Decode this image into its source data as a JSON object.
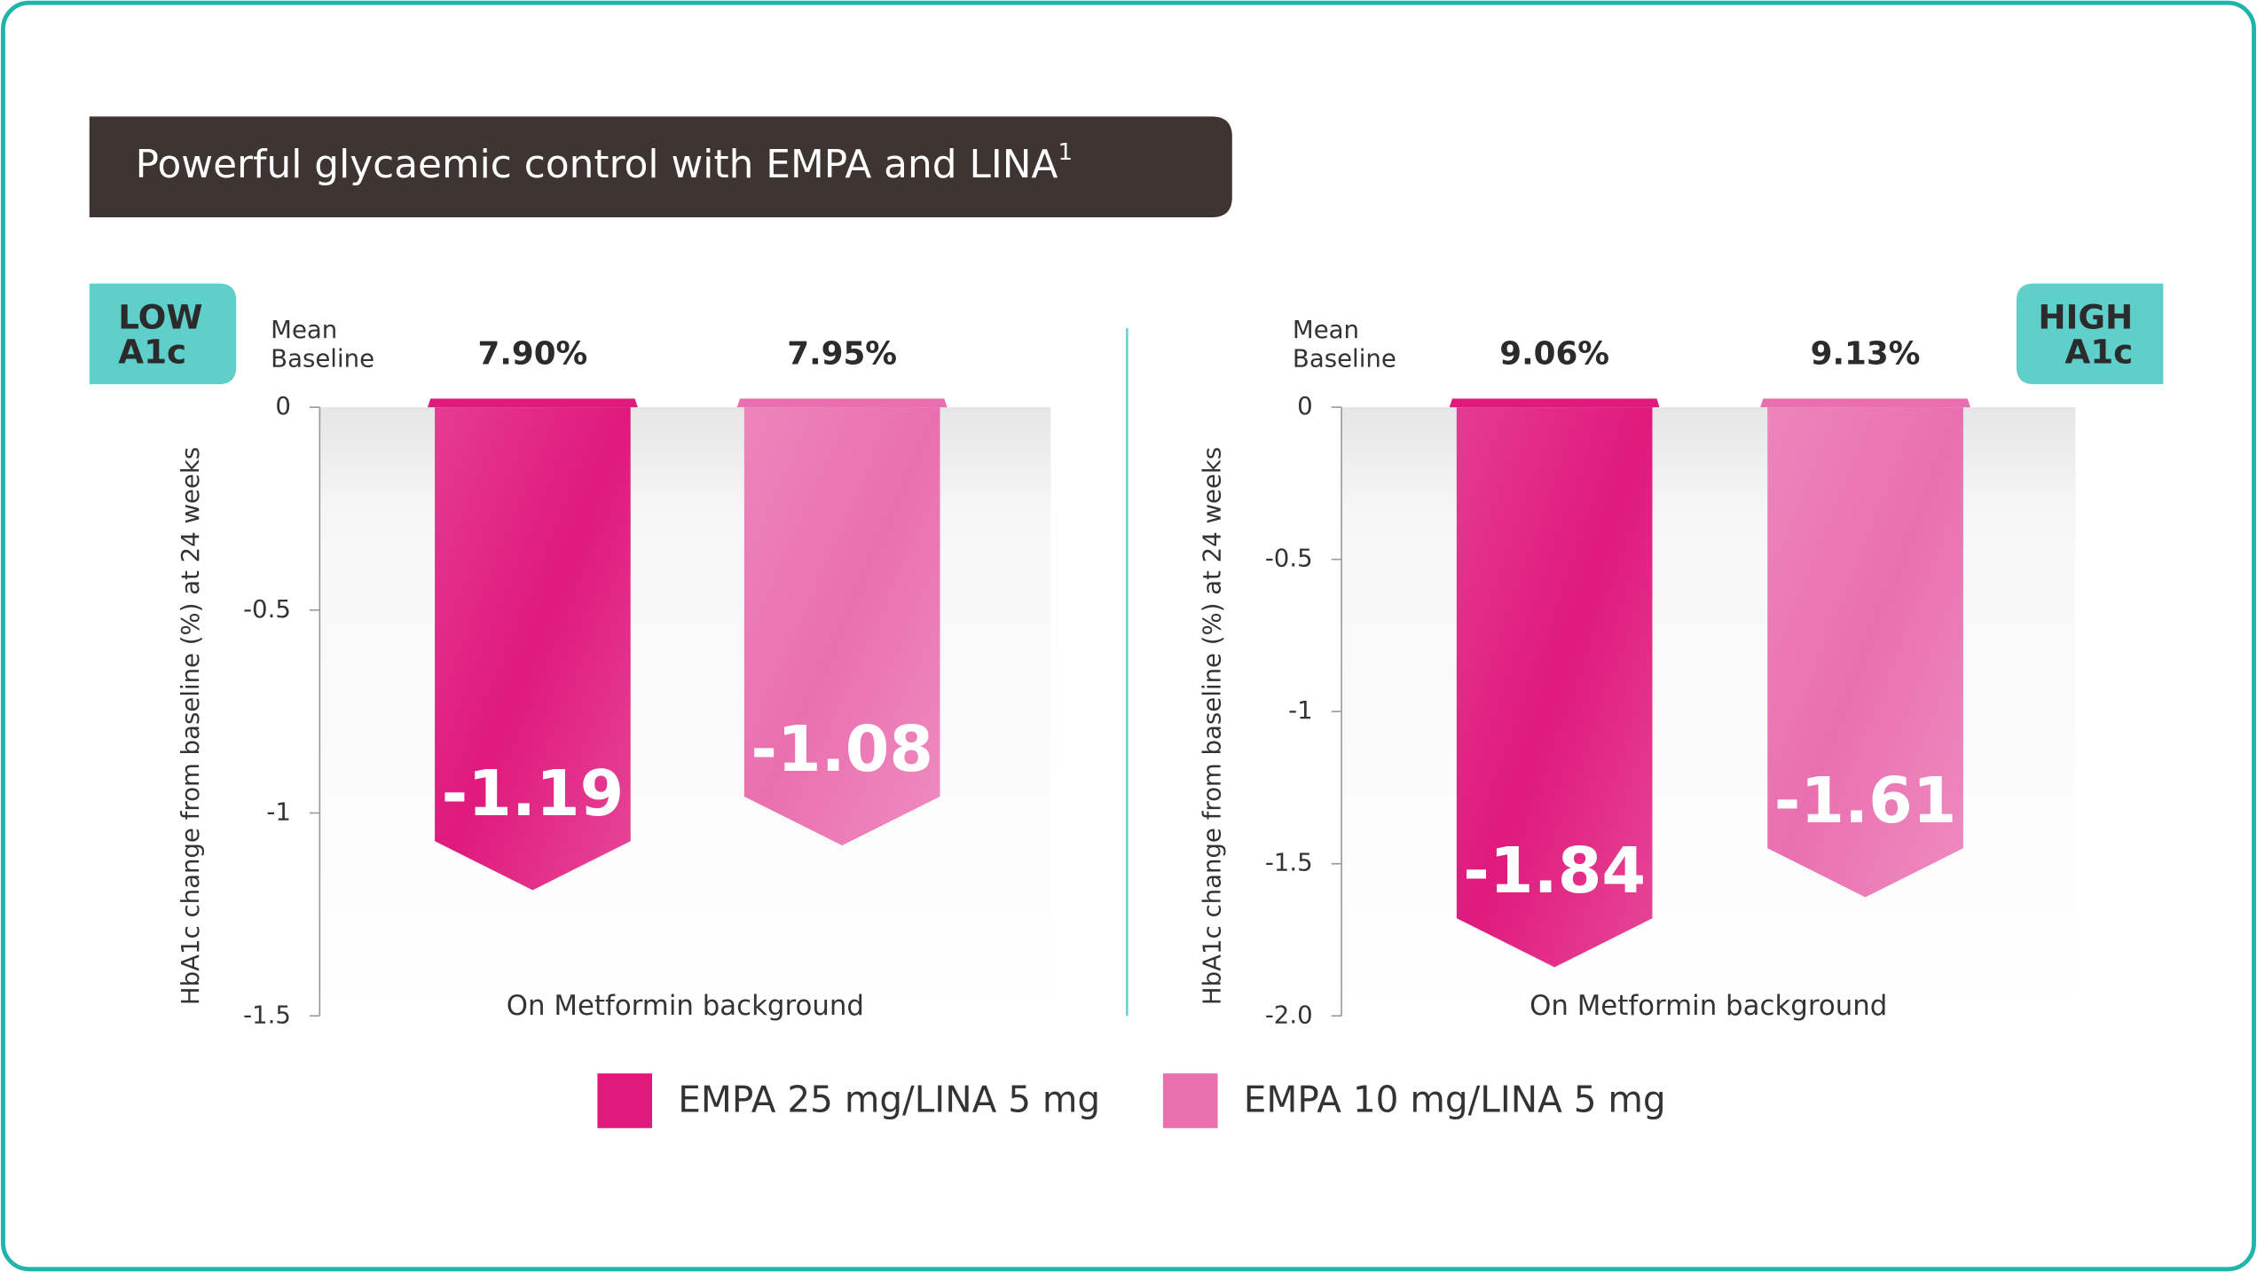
{
  "header": {
    "title": "Powerful glycaemic control with EMPA and LINA",
    "superscript": "1"
  },
  "chart_data": [
    {
      "type": "bar",
      "badge": [
        "LOW",
        "A1c"
      ],
      "baseline_label": [
        "Mean",
        "Baseline"
      ],
      "ylabel": "HbA1c change from baseline (%) at 24 weeks",
      "xlabel": "On Metformin background",
      "ylim": [
        -1.5,
        0
      ],
      "yticks": [
        0,
        -0.5,
        -1,
        -1.5
      ],
      "series": [
        {
          "name": "EMPA 25 mg/LINA 5 mg",
          "color": "#e0197d",
          "values": [
            -1.19
          ],
          "baseline": "7.90%"
        },
        {
          "name": "EMPA 10 mg/LINA 5 mg",
          "color": "#ea6fb0",
          "values": [
            -1.08
          ],
          "baseline": "7.95%"
        }
      ]
    },
    {
      "type": "bar",
      "badge": [
        "HIGH",
        "A1c"
      ],
      "baseline_label": [
        "Mean",
        "Baseline"
      ],
      "ylabel": "HbA1c change from baseline (%) at 24 weeks",
      "xlabel": "On Metformin background",
      "ylim": [
        -2,
        0
      ],
      "yticks": [
        0,
        -0.5,
        -1,
        -1.5,
        {
          "value": -2,
          "label": "-2.0"
        }
      ],
      "series": [
        {
          "color": "#e0197d",
          "values": [
            -1.84
          ],
          "baseline": "9.06%"
        },
        {
          "color": "#ea6fb0",
          "values": [
            -1.61
          ],
          "baseline": "9.13%"
        }
      ]
    }
  ]
}
